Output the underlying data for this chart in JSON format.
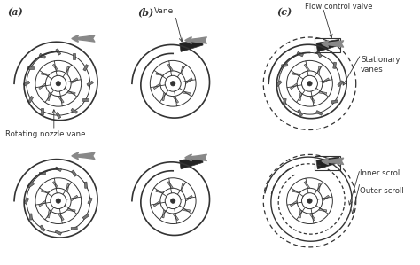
{
  "bg_color": "#ffffff",
  "line_color": "#333333",
  "gray_color": "#888888",
  "dark_gray": "#555555",
  "label_a": "(a)",
  "label_b": "(b)",
  "label_c": "(c)",
  "text_rotating_nozzle": "Rotating nozzle vane",
  "text_vane": "Vane",
  "text_flow_control": "Flow control valve",
  "text_stationary_vanes": "Stationary\nvanes",
  "text_inner_scroll": "Inner scroll",
  "text_outer_scroll": "Outer scroll",
  "figsize": [
    4.74,
    2.99
  ],
  "dpi": 100
}
